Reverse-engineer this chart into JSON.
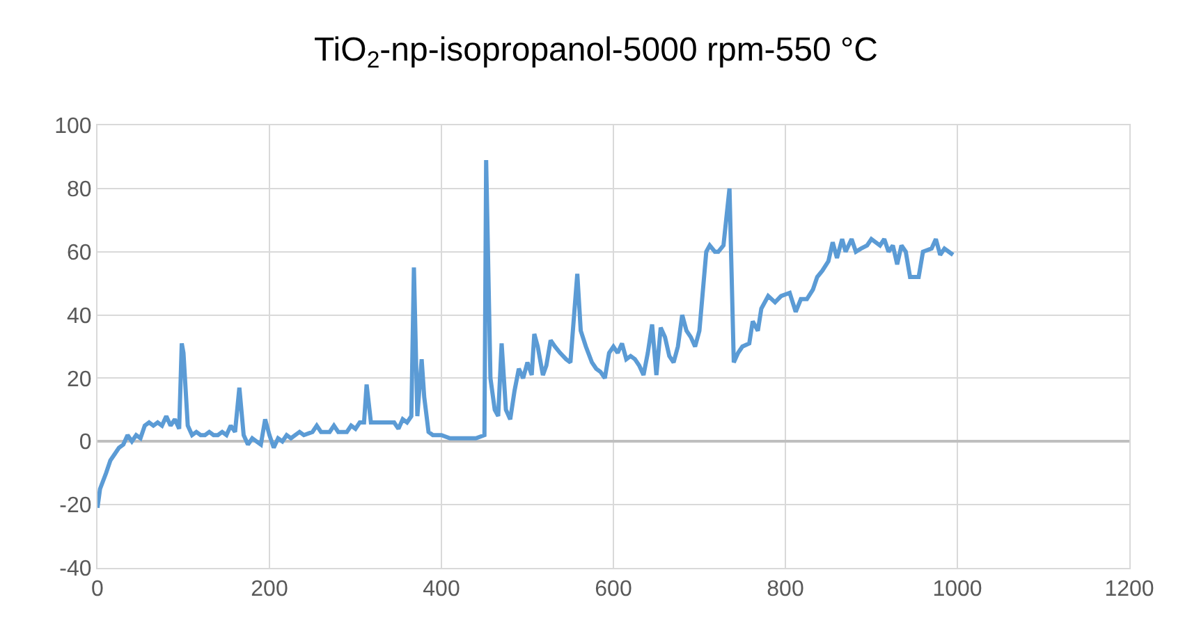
{
  "chart_data": {
    "type": "line",
    "title": "TiO$_{2}$-np-isopropanol-5000 rpm-550 °C",
    "x": [
      0,
      3,
      10,
      15,
      20,
      25,
      30,
      35,
      40,
      45,
      50,
      55,
      60,
      65,
      70,
      75,
      80,
      85,
      90,
      95,
      98,
      100,
      105,
      110,
      115,
      120,
      125,
      130,
      135,
      140,
      145,
      150,
      155,
      160,
      165,
      170,
      175,
      180,
      190,
      195,
      200,
      205,
      210,
      215,
      220,
      225,
      230,
      235,
      240,
      250,
      255,
      260,
      270,
      275,
      280,
      290,
      295,
      300,
      305,
      310,
      313,
      318,
      330,
      345,
      350,
      355,
      360,
      365,
      368,
      372,
      377,
      380,
      385,
      390,
      400,
      410,
      420,
      430,
      440,
      450,
      452,
      457,
      462,
      466,
      470,
      475,
      480,
      485,
      490,
      495,
      500,
      505,
      508,
      512,
      518,
      522,
      527,
      532,
      538,
      545,
      550,
      558,
      562,
      568,
      575,
      580,
      585,
      590,
      595,
      600,
      605,
      610,
      615,
      620,
      625,
      630,
      635,
      640,
      645,
      650,
      655,
      660,
      665,
      670,
      675,
      680,
      685,
      690,
      695,
      700,
      708,
      712,
      718,
      722,
      728,
      735,
      740,
      745,
      750,
      758,
      762,
      768,
      772,
      780,
      788,
      795,
      805,
      812,
      818,
      825,
      832,
      837,
      843,
      850,
      855,
      860,
      866,
      870,
      877,
      882,
      888,
      895,
      900,
      905,
      910,
      915,
      920,
      925,
      930,
      935,
      940,
      945,
      955,
      960,
      970,
      975,
      980,
      985,
      990,
      995
    ],
    "series": [
      {
        "color": "#5b9bd5",
        "values": [
          -21,
          -15,
          -10,
          -6,
          -4,
          -2,
          -1,
          2,
          0,
          2,
          1,
          5,
          6,
          5,
          6,
          5,
          8,
          5,
          7,
          4,
          31,
          28,
          5,
          2,
          3,
          2,
          2,
          3,
          2,
          2,
          3,
          2,
          5,
          3,
          17,
          2,
          -1,
          1,
          -1,
          7,
          2,
          -2,
          1,
          0,
          2,
          1,
          2,
          3,
          2,
          3,
          5,
          3,
          3,
          5,
          3,
          3,
          5,
          4,
          6,
          6,
          18,
          6,
          6,
          6,
          4,
          7,
          6,
          8,
          55,
          8,
          26,
          14,
          3,
          2,
          2,
          1,
          1,
          1,
          1,
          2,
          89,
          20,
          10,
          8,
          31,
          10,
          7,
          16,
          23,
          20,
          25,
          21,
          34,
          30,
          21,
          24,
          32,
          30,
          28,
          26,
          25,
          53,
          35,
          30,
          25,
          23,
          22,
          20,
          28,
          30,
          28,
          31,
          26,
          27,
          26,
          24,
          21,
          28,
          37,
          21,
          36,
          33,
          27,
          25,
          30,
          40,
          35,
          33,
          30,
          35,
          60,
          62,
          60,
          60,
          62,
          80,
          25,
          28,
          30,
          31,
          38,
          35,
          42,
          46,
          44,
          46,
          47,
          41,
          45,
          45,
          48,
          52,
          54,
          57,
          63,
          58,
          64,
          60,
          64,
          60,
          61,
          62,
          64,
          63,
          62,
          64,
          60,
          62,
          56,
          62,
          60,
          52,
          52,
          60,
          61,
          64,
          59,
          61,
          60,
          59
        ]
      }
    ],
    "xlim": [
      0,
      1200
    ],
    "xticks": [
      0,
      200,
      400,
      600,
      800,
      1000,
      1200
    ],
    "ylim": [
      -40,
      100
    ],
    "yticks": [
      -40,
      -20,
      0,
      20,
      40,
      60,
      80,
      100
    ],
    "grid": true,
    "legend": false,
    "marker": "none",
    "line_style": "solid"
  }
}
